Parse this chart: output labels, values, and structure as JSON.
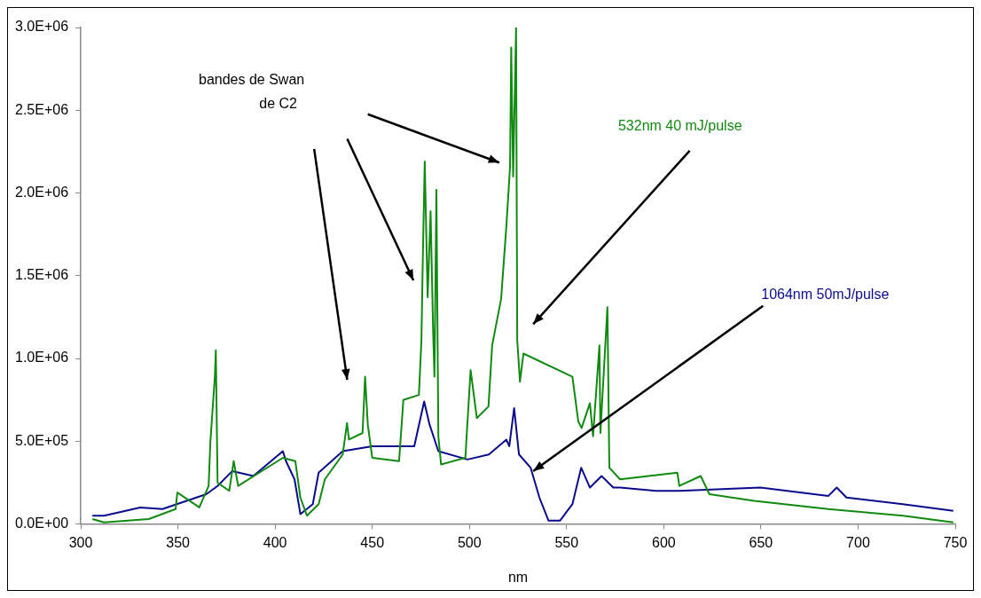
{
  "chart_data": {
    "type": "line",
    "xlabel": "nm",
    "xlim": [
      300,
      750
    ],
    "xticks": [
      300,
      350,
      400,
      450,
      500,
      550,
      600,
      650,
      700,
      750
    ],
    "ylim": [
      0,
      3000000
    ],
    "yticks": [
      {
        "value": 0,
        "label": "0.0E+00"
      },
      {
        "value": 500000,
        "label": "5.0E+05"
      },
      {
        "value": 1000000,
        "label": "1.0E+06"
      },
      {
        "value": 1500000,
        "label": "1.5E+06"
      },
      {
        "value": 2000000,
        "label": "2.0E+06"
      },
      {
        "value": 2500000,
        "label": "2.5E+06"
      },
      {
        "value": 3000000,
        "label": "3.0E+06"
      }
    ],
    "annotations": [
      "bandes de Swan de C2"
    ],
    "series": [
      {
        "name": "532nm 40 mJ/pulse",
        "color": "#118a11",
        "x": [
          306,
          312,
          335,
          348.8,
          349.7,
          361,
          365.8,
          366.7,
          369,
          369.5,
          370.4,
          376.4,
          378.7,
          381,
          404,
          410.4,
          413,
          416.4,
          422.4,
          425.6,
          434.8,
          437,
          438,
          445,
          446.3,
          447.7,
          450,
          463.8,
          466,
          474,
          475.3,
          476,
          477,
          478.5,
          480,
          481.3,
          482,
          483,
          484,
          485.4,
          497.9,
          500.6,
          503.8,
          509.8,
          511.7,
          516.3,
          519,
          520.9,
          521.5,
          522.5,
          524,
          524.6,
          526,
          527.8,
          553,
          556,
          557.7,
          562,
          563.6,
          566.9,
          567.4,
          571,
          572,
          577.5,
          607,
          608,
          619,
          623.5,
          646.5,
          684.7,
          723,
          749
        ],
        "values": [
          30000,
          10000,
          30000,
          90000,
          190000,
          100000,
          230000,
          500000,
          890000,
          1050000,
          250000,
          200000,
          380000,
          230000,
          400000,
          380000,
          160000,
          50000,
          120000,
          270000,
          420000,
          610000,
          510000,
          550000,
          890000,
          600000,
          400000,
          380000,
          750000,
          780000,
          1110000,
          1600000,
          2190000,
          1370000,
          1890000,
          1170000,
          890000,
          2020000,
          530000,
          360000,
          400000,
          930000,
          640000,
          710000,
          1080000,
          1360000,
          1800000,
          2160000,
          2880000,
          2100000,
          3000000,
          1110000,
          860000,
          1030000,
          890000,
          620000,
          580000,
          730000,
          530000,
          1080000,
          550000,
          1310000,
          340000,
          270000,
          310000,
          230000,
          290000,
          180000,
          140000,
          90000,
          50000,
          10000
        ]
      },
      {
        "name": "1064nm 50mJ/pulse",
        "color": "#0a0a8c",
        "x": [
          306,
          312,
          330.6,
          342,
          364.6,
          370.4,
          378,
          388.8,
          404,
          405.6,
          410,
          413,
          419.4,
          422.4,
          434.8,
          450,
          471.6,
          476.7,
          479.5,
          484,
          499,
          510,
          519,
          520.5,
          523,
          525.5,
          531.5,
          536,
          540.7,
          546.6,
          553,
          557.5,
          562,
          568,
          574,
          577.5,
          596,
          608,
          649.7,
          684.7,
          689,
          694,
          723,
          749
        ],
        "values": [
          50000,
          50000,
          100000,
          90000,
          180000,
          230000,
          320000,
          290000,
          440000,
          380000,
          270000,
          60000,
          120000,
          310000,
          440000,
          470000,
          470000,
          740000,
          600000,
          440000,
          390000,
          420000,
          510000,
          470000,
          700000,
          420000,
          340000,
          160000,
          20000,
          20000,
          120000,
          340000,
          220000,
          290000,
          220000,
          220000,
          200000,
          200000,
          220000,
          170000,
          220000,
          160000,
          120000,
          80000
        ]
      }
    ]
  }
}
